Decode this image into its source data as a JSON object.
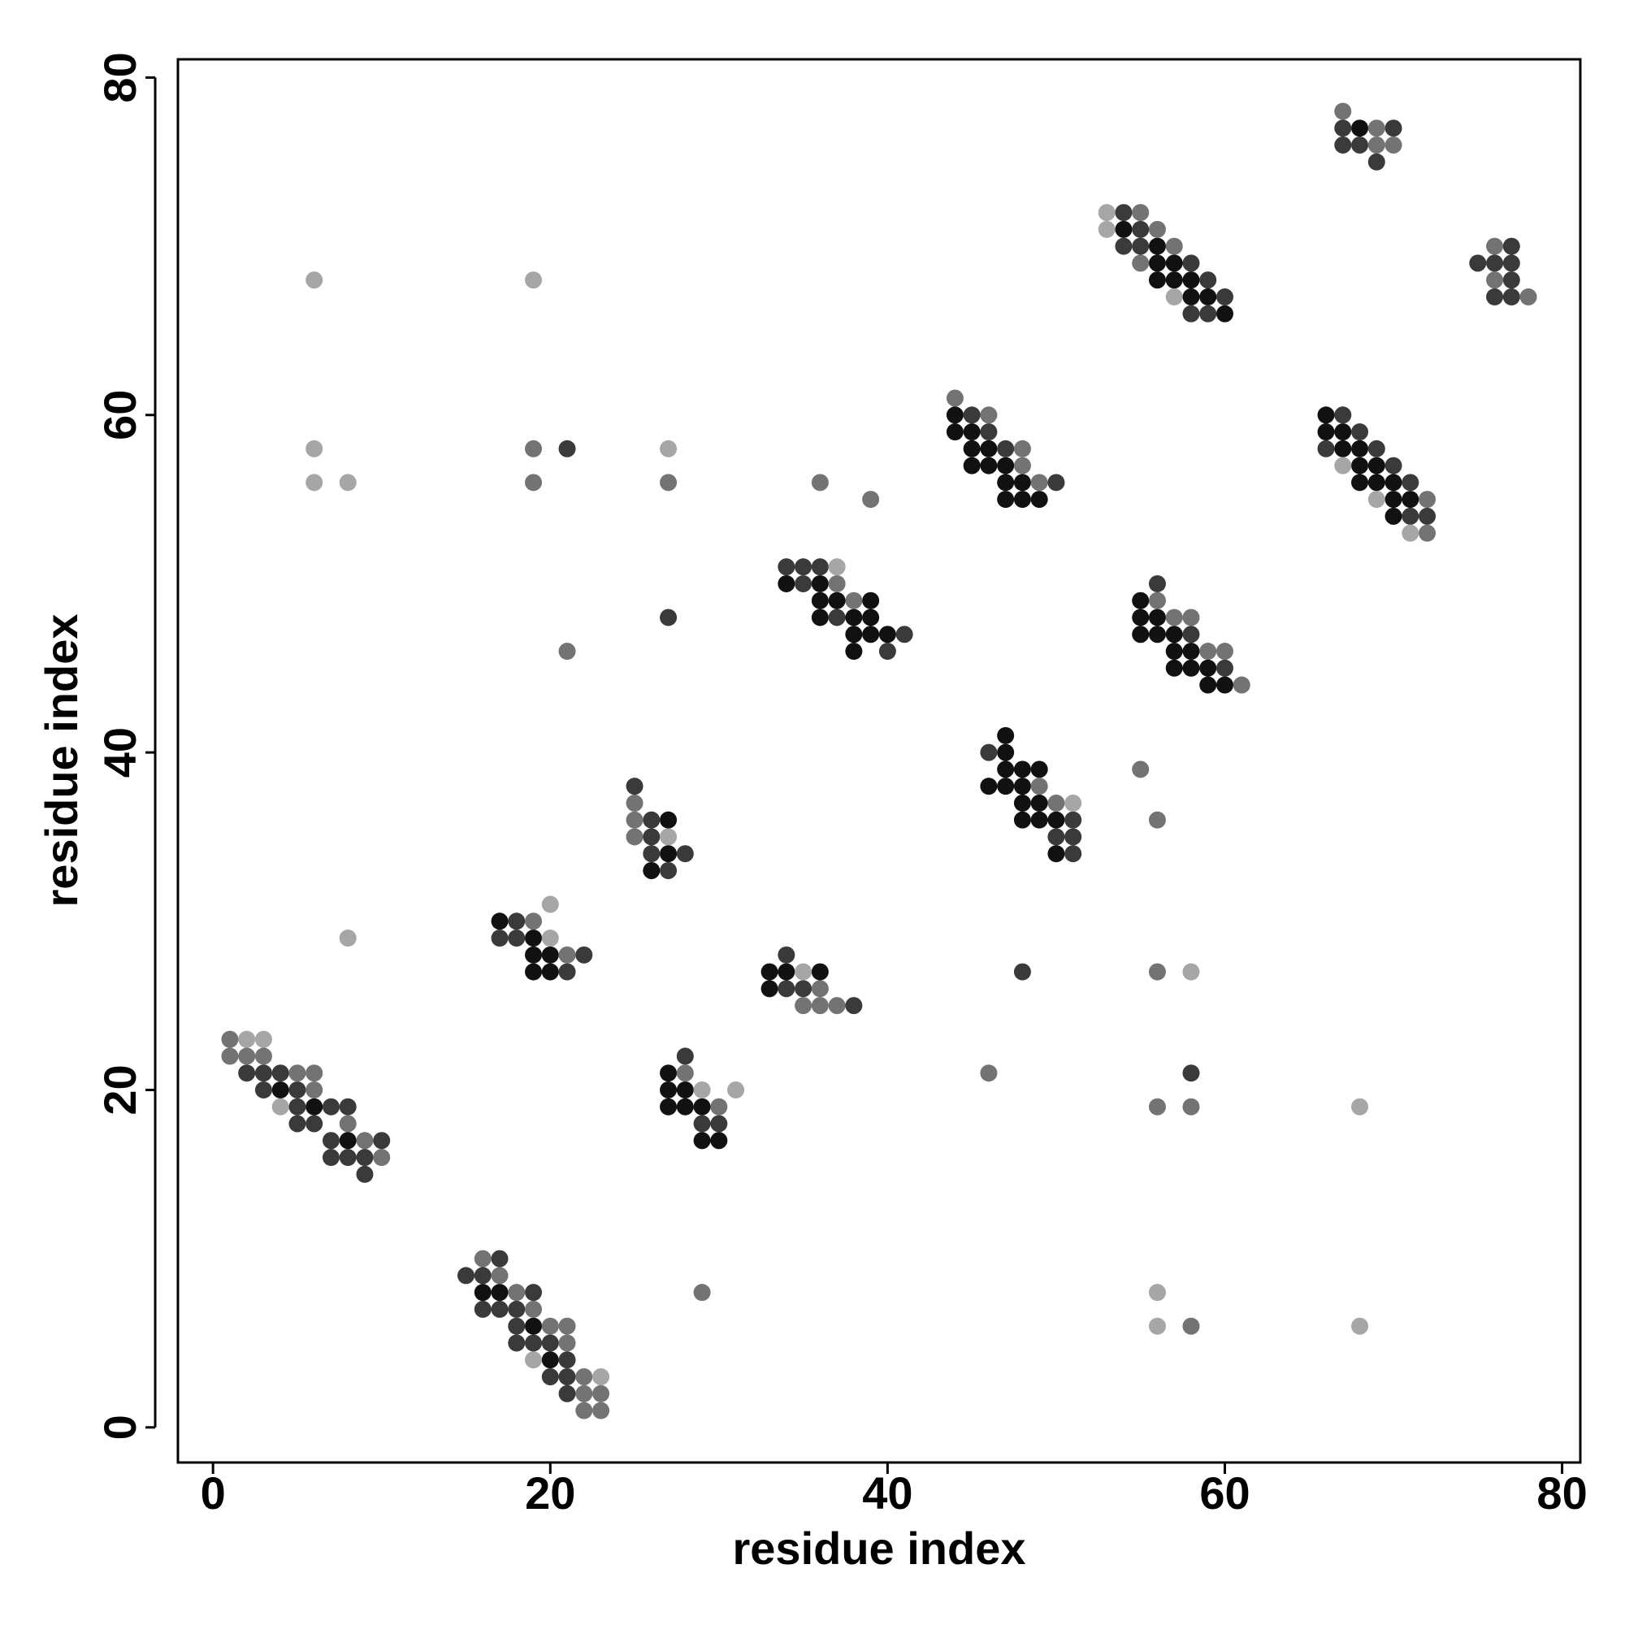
{
  "chart_data": {
    "type": "scatter",
    "x_label": "residue index",
    "y_label": "residue index",
    "xlim": [
      -2.08,
      81.08
    ],
    "ylim": [
      -2.08,
      81.08
    ],
    "xticks": [
      0,
      20,
      40,
      60,
      80
    ],
    "yticks": [
      0,
      20,
      40,
      60,
      80
    ],
    "series": [
      {
        "color": "#111111",
        "x": [
          4,
          6,
          8,
          16,
          17,
          19,
          20,
          17,
          19,
          19,
          20,
          19,
          20,
          27,
          27,
          26,
          27,
          27,
          28,
          27,
          28,
          29,
          29,
          30,
          33,
          34,
          36,
          33,
          34,
          36,
          36,
          37,
          39,
          36,
          38,
          39,
          38,
          39,
          40,
          38,
          44,
          44,
          45,
          45,
          46,
          45,
          46,
          47,
          47,
          48,
          47,
          48,
          49,
          47,
          47,
          47,
          48,
          49,
          46,
          47,
          48,
          48,
          49,
          48,
          49,
          50,
          50,
          54,
          56,
          56,
          57,
          56,
          57,
          58,
          58,
          59,
          60,
          55,
          55,
          56,
          55,
          56,
          57,
          57,
          58,
          57,
          58,
          59,
          59,
          60,
          66,
          66,
          67,
          67,
          68,
          68,
          69,
          68,
          69,
          70,
          70,
          71,
          70,
          68
        ],
        "values": [
          20,
          19,
          17,
          8,
          8,
          6,
          4,
          30,
          29,
          28,
          28,
          27,
          27,
          36,
          34,
          33,
          21,
          20,
          20,
          19,
          19,
          19,
          17,
          17,
          27,
          27,
          27,
          26,
          50,
          50,
          49,
          49,
          49,
          48,
          48,
          48,
          47,
          47,
          47,
          46,
          60,
          59,
          59,
          58,
          58,
          57,
          57,
          57,
          56,
          56,
          55,
          55,
          55,
          41,
          40,
          39,
          39,
          39,
          38,
          38,
          38,
          37,
          37,
          36,
          36,
          36,
          34,
          71,
          70,
          69,
          69,
          68,
          68,
          68,
          67,
          67,
          66,
          49,
          48,
          48,
          47,
          47,
          47,
          46,
          46,
          45,
          45,
          45,
          44,
          44,
          60,
          59,
          59,
          58,
          58,
          57,
          57,
          56,
          56,
          56,
          55,
          55,
          54,
          77
        ]
      },
      {
        "color": "#3a3a3a",
        "x": [
          2,
          3,
          4,
          3,
          5,
          5,
          7,
          8,
          5,
          6,
          7,
          10,
          7,
          8,
          9,
          9,
          17,
          15,
          16,
          19,
          16,
          17,
          18,
          18,
          18,
          19,
          20,
          21,
          20,
          21,
          21,
          18,
          17,
          18,
          22,
          21,
          25,
          26,
          26,
          26,
          28,
          27,
          28,
          29,
          30,
          34,
          34,
          35,
          38,
          34,
          35,
          36,
          35,
          37,
          41,
          40,
          45,
          46,
          47,
          50,
          46,
          51,
          50,
          51,
          51,
          54,
          55,
          54,
          55,
          58,
          59,
          60,
          58,
          59,
          56,
          58,
          60,
          67,
          68,
          66,
          69,
          70,
          71,
          71,
          72,
          67,
          70,
          67,
          68,
          69,
          77,
          75,
          76,
          77,
          77,
          76,
          77,
          21,
          27,
          48,
          58
        ],
        "values": [
          21,
          21,
          21,
          20,
          20,
          19,
          19,
          19,
          18,
          18,
          17,
          17,
          16,
          16,
          16,
          15,
          10,
          9,
          9,
          8,
          7,
          7,
          7,
          6,
          5,
          5,
          5,
          4,
          3,
          3,
          2,
          30,
          29,
          29,
          28,
          27,
          38,
          36,
          35,
          34,
          34,
          33,
          22,
          18,
          18,
          28,
          26,
          26,
          25,
          51,
          51,
          51,
          50,
          48,
          47,
          46,
          60,
          59,
          58,
          56,
          40,
          36,
          35,
          35,
          34,
          72,
          71,
          70,
          70,
          69,
          68,
          67,
          66,
          66,
          50,
          47,
          45,
          60,
          59,
          58,
          58,
          57,
          56,
          54,
          54,
          77,
          77,
          76,
          76,
          75,
          70,
          69,
          69,
          69,
          68,
          67,
          67,
          58,
          48,
          27,
          21
        ]
      },
      {
        "color": "#737373",
        "x": [
          1,
          1,
          2,
          3,
          5,
          6,
          6,
          8,
          9,
          10,
          16,
          17,
          18,
          19,
          20,
          21,
          21,
          22,
          22,
          23,
          22,
          23,
          19,
          21,
          25,
          25,
          25,
          28,
          30,
          36,
          35,
          36,
          37,
          37,
          38,
          44,
          46,
          48,
          48,
          49,
          49,
          50,
          55,
          56,
          57,
          55,
          56,
          57,
          58,
          59,
          60,
          61,
          72,
          72,
          67,
          69,
          69,
          70,
          76,
          76,
          78,
          19,
          19,
          27,
          36,
          39,
          21,
          56,
          55,
          56,
          46,
          56,
          58,
          29,
          58
        ],
        "values": [
          23,
          22,
          22,
          22,
          21,
          21,
          20,
          18,
          17,
          16,
          10,
          9,
          8,
          7,
          6,
          6,
          5,
          3,
          2,
          2,
          1,
          1,
          30,
          28,
          37,
          36,
          35,
          21,
          19,
          26,
          25,
          25,
          25,
          50,
          49,
          61,
          60,
          58,
          57,
          56,
          38,
          37,
          72,
          71,
          70,
          69,
          49,
          48,
          48,
          46,
          46,
          44,
          55,
          53,
          78,
          77,
          76,
          76,
          70,
          68,
          67,
          58,
          56,
          56,
          56,
          55,
          46,
          27,
          39,
          36,
          21,
          19,
          19,
          8,
          6
        ]
      },
      {
        "color": "#a6a6a6",
        "x": [
          2,
          3,
          4,
          19,
          23,
          20,
          20,
          27,
          29,
          31,
          35,
          37,
          51,
          53,
          53,
          57,
          67,
          69,
          71,
          6,
          19,
          6,
          6,
          8,
          27,
          8,
          58,
          68,
          56,
          56,
          68
        ],
        "values": [
          23,
          23,
          19,
          4,
          3,
          31,
          29,
          35,
          20,
          20,
          27,
          51,
          37,
          72,
          71,
          67,
          57,
          55,
          53,
          68,
          68,
          58,
          56,
          56,
          58,
          29,
          27,
          19,
          8,
          6,
          6
        ]
      }
    ]
  }
}
